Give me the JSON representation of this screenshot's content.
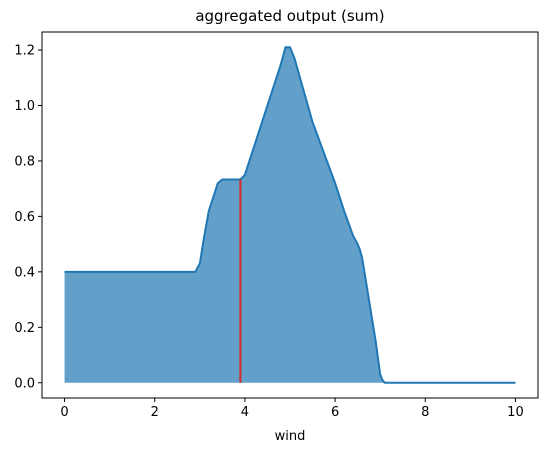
{
  "chart_data": {
    "type": "area",
    "title": "aggregated output (sum)",
    "xlabel": "wind",
    "ylabel": "",
    "xlim": [
      -0.5,
      10.5
    ],
    "ylim": [
      -0.055,
      1.265
    ],
    "grid": false,
    "legend": "none",
    "xticks": [
      "0",
      "2",
      "4",
      "6",
      "8",
      "10"
    ],
    "yticks": [
      "0.0",
      "0.2",
      "0.4",
      "0.6",
      "0.8",
      "1.0",
      "1.2"
    ],
    "series": [
      {
        "values_x": [
          0,
          0.2,
          0.5,
          1.0,
          1.5,
          2.0,
          2.5,
          2.9,
          3.0,
          3.1,
          3.2,
          3.3,
          3.4,
          3.5,
          3.7,
          3.9,
          4.0,
          4.2,
          4.5,
          4.8,
          4.9,
          5.0,
          5.1,
          5.5,
          6.0,
          6.2,
          6.4,
          6.5,
          6.55,
          6.6,
          6.8,
          6.9,
          7.0,
          7.05,
          7.1,
          8.0,
          9.0,
          10.0
        ],
        "values_y": [
          0.4,
          0.4,
          0.4,
          0.4,
          0.4,
          0.4,
          0.4,
          0.4,
          0.43,
          0.53,
          0.62,
          0.67,
          0.72,
          0.733,
          0.733,
          0.733,
          0.75,
          0.85,
          1.0,
          1.15,
          1.21,
          1.21,
          1.17,
          0.94,
          0.72,
          0.62,
          0.53,
          0.5,
          0.48,
          0.45,
          0.25,
          0.15,
          0.03,
          0.01,
          0.0,
          0.0,
          0.0,
          0.0
        ],
        "color": "#1f77b4",
        "fill": "#1f77b4",
        "fill_opacity": 0.7
      }
    ],
    "marker_line": {
      "x": 3.9,
      "y_from": 0.0,
      "y_to": 0.733,
      "color": "#d62728"
    }
  }
}
